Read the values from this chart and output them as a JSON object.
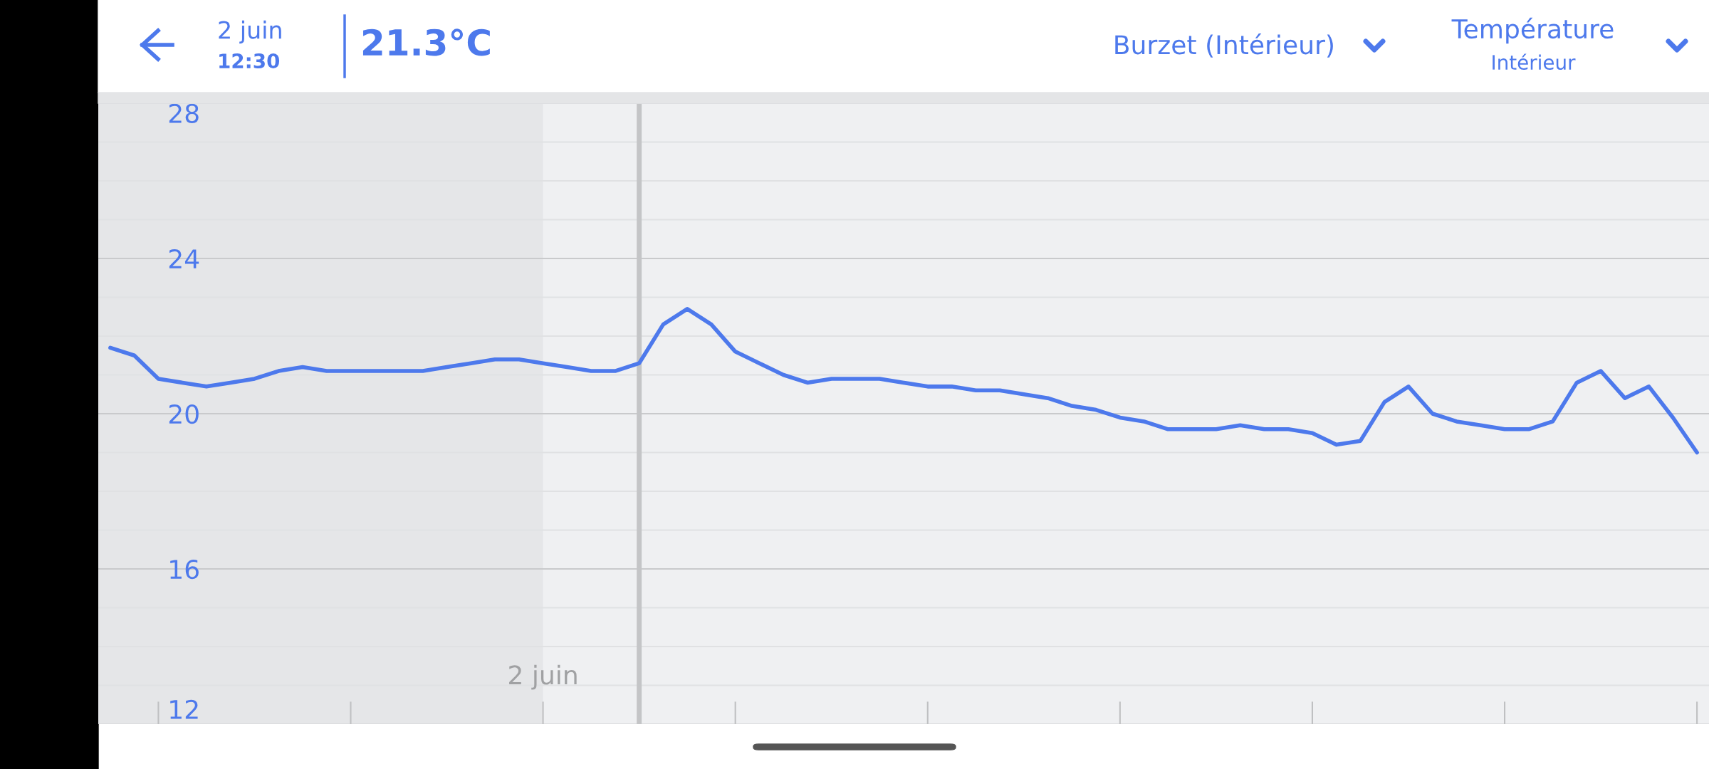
{
  "chart_data": {
    "type": "line",
    "title": "Température",
    "subtitle": "Intérieur",
    "annotations": [
      "2 juin",
      "12:30",
      "21.3°C",
      "Burzet (Intérieur)"
    ],
    "categories": [
      null,
      null,
      null,
      null,
      null,
      null,
      null,
      null,
      null,
      null,
      null,
      null,
      null,
      null,
      null,
      null,
      null,
      null,
      "2 juin",
      null,
      null,
      null,
      null,
      null,
      null,
      null,
      null,
      null,
      null,
      null,
      null,
      null,
      null,
      null,
      null,
      null,
      null,
      null,
      null,
      null,
      null,
      null,
      null,
      null,
      null,
      null,
      null,
      null,
      null,
      null,
      null,
      null,
      null,
      null,
      null,
      null,
      null,
      null,
      null,
      null,
      null,
      null,
      null,
      null,
      null,
      null,
      null
    ],
    "series": [
      {
        "color": "#4d79ec",
        "values": [
          21.7,
          21.5,
          20.9,
          20.8,
          20.7,
          20.8,
          20.9,
          21.1,
          21.2,
          21.1,
          21.1,
          21.1,
          21.1,
          21.1,
          21.2,
          21.3,
          21.4,
          21.4,
          21.3,
          21.2,
          21.1,
          21.1,
          21.3,
          22.3,
          22.7,
          22.3,
          21.6,
          21.3,
          21.0,
          20.8,
          20.9,
          20.9,
          20.9,
          20.8,
          20.7,
          20.7,
          20.6,
          20.6,
          20.5,
          20.4,
          20.2,
          20.1,
          19.9,
          19.8,
          19.6,
          19.6,
          19.6,
          19.7,
          19.6,
          19.6,
          19.5,
          19.2,
          19.3,
          20.3,
          20.7,
          20.0,
          19.8,
          19.7,
          19.6,
          19.6,
          19.8,
          20.8,
          21.1,
          20.4,
          20.7,
          19.9,
          19.0
        ]
      }
    ],
    "ylim": [
      12,
      28
    ],
    "yticks": [
      12,
      16,
      20,
      24,
      28
    ],
    "grid": "y"
  }
}
